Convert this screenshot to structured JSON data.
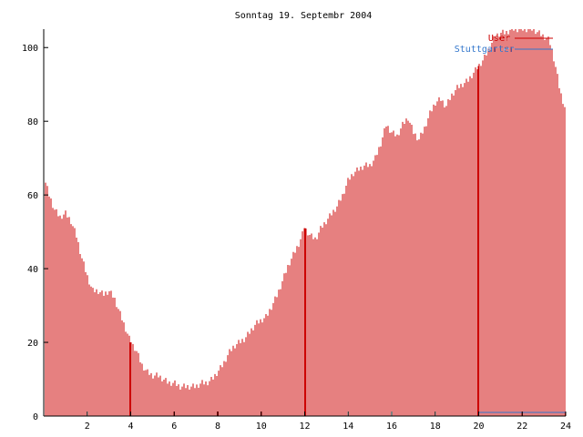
{
  "chart_data": {
    "type": "bar",
    "title": "Sonntag 19. Septembr 2004",
    "xlabel": "",
    "ylabel": "",
    "xlim": [
      0,
      24
    ],
    "ylim": [
      0,
      105
    ],
    "x_ticks": [
      "2",
      "4",
      "6",
      "8",
      "10",
      "12",
      "14",
      "16",
      "18",
      "20",
      "22",
      "24"
    ],
    "y_ticks": [
      "0",
      "20",
      "40",
      "60",
      "80",
      "100"
    ],
    "grid": false,
    "legend_position": "top-right",
    "colors": {
      "bars": "#cc0000",
      "legend_alt": "#3377cc",
      "axis": "#000000"
    },
    "legend": [
      {
        "label": "User",
        "color": "#cc0000"
      },
      {
        "label": "Stuttgarter",
        "color": "#3377cc"
      }
    ],
    "series": [
      {
        "name": "User",
        "color": "#cc0000",
        "points": [
          [
            0.0,
            65
          ],
          [
            0.25,
            60
          ],
          [
            0.5,
            56
          ],
          [
            0.75,
            54
          ],
          [
            1.0,
            55
          ],
          [
            1.25,
            53
          ],
          [
            1.5,
            49
          ],
          [
            1.75,
            43
          ],
          [
            2.0,
            38
          ],
          [
            2.25,
            34
          ],
          [
            2.5,
            34
          ],
          [
            2.75,
            33
          ],
          [
            3.0,
            34
          ],
          [
            3.25,
            32
          ],
          [
            3.5,
            28
          ],
          [
            3.75,
            24
          ],
          [
            4.0,
            20
          ],
          [
            4.25,
            18
          ],
          [
            4.5,
            14
          ],
          [
            4.75,
            12
          ],
          [
            5.0,
            11
          ],
          [
            5.25,
            11
          ],
          [
            5.5,
            10
          ],
          [
            5.75,
            9
          ],
          [
            6.0,
            9
          ],
          [
            6.25,
            8
          ],
          [
            6.5,
            8
          ],
          [
            6.75,
            8
          ],
          [
            7.0,
            8
          ],
          [
            7.25,
            9
          ],
          [
            7.5,
            9
          ],
          [
            7.75,
            10
          ],
          [
            8.0,
            12
          ],
          [
            8.25,
            14
          ],
          [
            8.5,
            17
          ],
          [
            8.75,
            19
          ],
          [
            9.0,
            20
          ],
          [
            9.25,
            21
          ],
          [
            9.5,
            23
          ],
          [
            9.75,
            25
          ],
          [
            10.0,
            26
          ],
          [
            10.25,
            27
          ],
          [
            10.5,
            30
          ],
          [
            10.75,
            33
          ],
          [
            11.0,
            37
          ],
          [
            11.25,
            41
          ],
          [
            11.5,
            44
          ],
          [
            11.75,
            47
          ],
          [
            12.0,
            51
          ],
          [
            12.25,
            49
          ],
          [
            12.5,
            48
          ],
          [
            12.75,
            51
          ],
          [
            13.0,
            53
          ],
          [
            13.25,
            55
          ],
          [
            13.5,
            57
          ],
          [
            13.75,
            60
          ],
          [
            14.0,
            64
          ],
          [
            14.25,
            66
          ],
          [
            14.5,
            67
          ],
          [
            14.75,
            68
          ],
          [
            15.0,
            68
          ],
          [
            15.25,
            70
          ],
          [
            15.5,
            74
          ],
          [
            15.75,
            79
          ],
          [
            16.0,
            77
          ],
          [
            16.25,
            76
          ],
          [
            16.5,
            79
          ],
          [
            16.75,
            81
          ],
          [
            17.0,
            77
          ],
          [
            17.25,
            75
          ],
          [
            17.5,
            78
          ],
          [
            17.75,
            82
          ],
          [
            18.0,
            85
          ],
          [
            18.25,
            86
          ],
          [
            18.5,
            84
          ],
          [
            18.75,
            87
          ],
          [
            19.0,
            89
          ],
          [
            19.25,
            90
          ],
          [
            19.5,
            91
          ],
          [
            19.75,
            93
          ],
          [
            20.0,
            95
          ],
          [
            20.25,
            97
          ],
          [
            20.5,
            100
          ],
          [
            20.75,
            103
          ],
          [
            21.0,
            104
          ],
          [
            21.25,
            104
          ],
          [
            21.5,
            105
          ],
          [
            21.75,
            105
          ],
          [
            22.0,
            105
          ],
          [
            22.25,
            105
          ],
          [
            22.5,
            105
          ],
          [
            22.75,
            104
          ],
          [
            23.0,
            103
          ],
          [
            23.25,
            102
          ],
          [
            23.5,
            96
          ],
          [
            23.75,
            88
          ],
          [
            24.0,
            83
          ]
        ]
      },
      {
        "name": "Stuttgarter",
        "color": "#3377cc",
        "points": [
          [
            20.0,
            1
          ],
          [
            20.5,
            1
          ],
          [
            21.0,
            1
          ],
          [
            21.5,
            1
          ],
          [
            22.0,
            1
          ],
          [
            22.5,
            1
          ],
          [
            23.0,
            1
          ],
          [
            23.5,
            1
          ],
          [
            24.0,
            1
          ]
        ]
      }
    ]
  }
}
